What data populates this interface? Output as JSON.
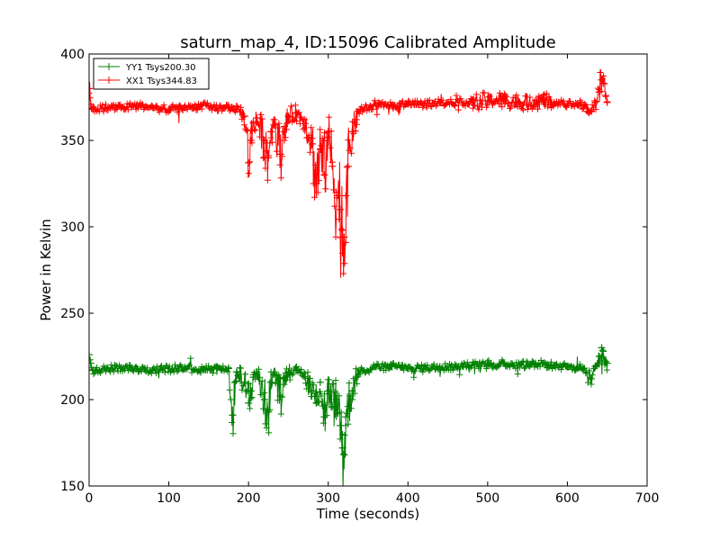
{
  "chart_data": {
    "type": "line",
    "title": "saturn_map_4, ID:15096 Calibrated Amplitude",
    "xlabel": "Time (seconds)",
    "ylabel": "Power in Kelvin",
    "xlim": [
      0,
      700
    ],
    "ylim": [
      150,
      400
    ],
    "xticks": [
      0,
      100,
      200,
      300,
      400,
      500,
      600,
      700
    ],
    "yticks": [
      150,
      200,
      250,
      300,
      350,
      400
    ],
    "grid": false,
    "legend_position": "top-left",
    "marker": "+",
    "series": [
      {
        "name": "YY1 Tsys200.30",
        "color": "#008000",
        "baseline": 218,
        "x": [
          0,
          2,
          5,
          20,
          40,
          60,
          80,
          100,
          120,
          140,
          160,
          175,
          180,
          185,
          195,
          200,
          203,
          206,
          210,
          220,
          225,
          228,
          232,
          240,
          245,
          250,
          260,
          270,
          280,
          285,
          290,
          295,
          300,
          305,
          310,
          315,
          318,
          320,
          322,
          325,
          330,
          335,
          340,
          360,
          380,
          400,
          420,
          440,
          460,
          480,
          500,
          520,
          540,
          560,
          580,
          600,
          620,
          630,
          635,
          640,
          643,
          645,
          648,
          650
        ],
        "y": [
          226,
          221,
          217,
          218,
          218,
          218,
          217,
          218,
          218,
          217,
          218,
          218,
          191,
          216,
          210,
          198,
          205,
          213,
          216,
          200,
          193,
          210,
          216,
          202,
          212,
          216,
          217,
          215,
          205,
          198,
          210,
          190,
          205,
          196,
          200,
          185,
          172,
          168,
          190,
          196,
          205,
          213,
          217,
          219,
          219,
          218,
          218,
          219,
          219,
          220,
          220,
          221,
          220,
          221,
          220,
          219,
          218,
          212,
          219,
          225,
          230,
          228,
          222,
          221
        ]
      },
      {
        "name": "XX1 Tsys344.83",
        "color": "#ff0000",
        "baseline": 369,
        "x": [
          0,
          2,
          5,
          20,
          40,
          60,
          80,
          100,
          120,
          140,
          160,
          175,
          185,
          195,
          200,
          203,
          206,
          210,
          220,
          225,
          228,
          232,
          240,
          245,
          250,
          260,
          270,
          280,
          285,
          290,
          295,
          300,
          305,
          310,
          315,
          318,
          320,
          322,
          325,
          330,
          335,
          340,
          360,
          380,
          400,
          420,
          440,
          460,
          480,
          500,
          520,
          540,
          560,
          580,
          600,
          620,
          630,
          635,
          640,
          643,
          645,
          648,
          650
        ],
        "y": [
          380,
          371,
          368,
          369,
          369,
          370,
          369,
          368,
          369,
          370,
          369,
          369,
          368,
          364,
          337,
          350,
          360,
          363,
          350,
          340,
          355,
          362,
          342,
          358,
          364,
          366,
          362,
          348,
          325,
          345,
          330,
          355,
          335,
          320,
          310,
          298,
          294,
          318,
          335,
          355,
          362,
          368,
          370,
          370,
          371,
          371,
          372,
          372,
          372,
          373,
          373,
          372,
          373,
          372,
          371,
          370,
          367,
          372,
          378,
          385,
          383,
          376,
          372
        ]
      }
    ]
  }
}
